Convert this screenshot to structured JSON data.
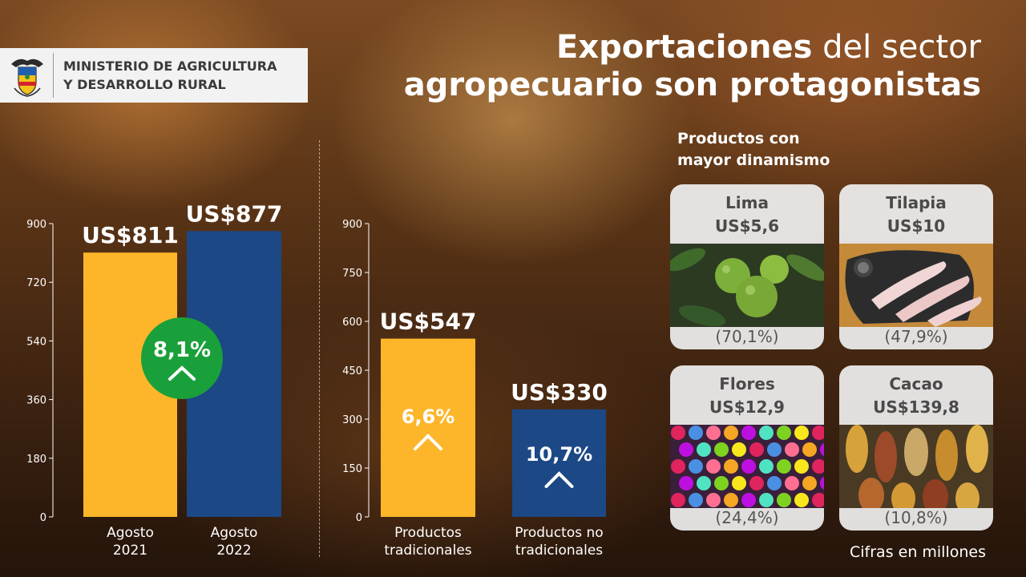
{
  "header": {
    "ministry_line1": "MINISTERIO DE AGRICULTURA",
    "ministry_line2": "Y DESARROLLO RURAL",
    "title_bold1": "Exportaciones",
    "title_light": " del sector",
    "title_line2": "agropecuario son protagonistas"
  },
  "colors": {
    "yellow": "#fdb62a",
    "blue": "#1c4886",
    "green": "#1aa03a",
    "axis": "#ffffff"
  },
  "chart_data": [
    {
      "type": "bar",
      "categories": [
        "Agosto\n2021",
        "Agosto\n2022"
      ],
      "values": [
        811,
        877
      ],
      "data_labels": [
        "US$811",
        "US$877"
      ],
      "bar_colors": [
        "#fdb62a",
        "#1c4886"
      ],
      "ylim": [
        0,
        900
      ],
      "yticks": [
        0,
        180,
        360,
        540,
        720,
        900
      ],
      "badge": {
        "text": "8,1%",
        "direction": "up"
      }
    },
    {
      "type": "bar",
      "categories": [
        "Productos\ntradicionales",
        "Productos no\ntradicionales"
      ],
      "values": [
        547,
        330
      ],
      "data_labels": [
        "US$547",
        "US$330"
      ],
      "bar_colors": [
        "#fdb62a",
        "#1c4886"
      ],
      "ylim": [
        0,
        900
      ],
      "yticks": [
        0,
        150,
        300,
        450,
        600,
        750,
        900
      ],
      "growth_labels": [
        "6,6%",
        "10,7%"
      ]
    }
  ],
  "products": {
    "heading_line1": "Productos con",
    "heading_line2": "mayor dinamismo",
    "items": [
      {
        "name": "Lima",
        "value": "US$5,6",
        "change": "(70,1%)",
        "picture": "limes"
      },
      {
        "name": "Tilapia",
        "value": "US$10",
        "change": "(47,9%)",
        "picture": "fish-fillets"
      },
      {
        "name": "Flores",
        "value": "US$12,9",
        "change": "(24,4%)",
        "picture": "flowers"
      },
      {
        "name": "Cacao",
        "value": "US$139,8",
        "change": "(10,8%)",
        "picture": "cacao-pods"
      }
    ]
  },
  "footnote": "Cifras en millones"
}
